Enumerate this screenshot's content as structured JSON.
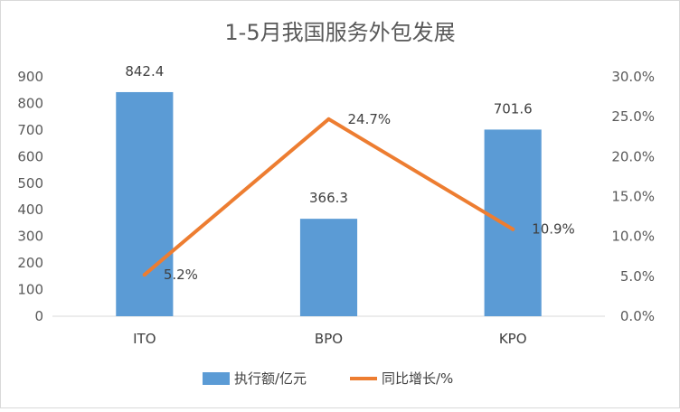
{
  "chart_data": {
    "type": "bar",
    "title": "1-5月我国服务外包发展",
    "categories": [
      "ITO",
      "BPO",
      "KPO"
    ],
    "series": [
      {
        "name": "执行额/亿元",
        "type": "bar",
        "axis": "left",
        "values": [
          842.4,
          366.3,
          701.6
        ],
        "labels": [
          "842.4",
          "366.3",
          "701.6"
        ],
        "color": "#5b9bd5"
      },
      {
        "name": "同比增长/%",
        "type": "line",
        "axis": "right",
        "values": [
          5.2,
          24.7,
          10.9
        ],
        "labels": [
          "5.2%",
          "24.7%",
          "10.9%"
        ],
        "color": "#ed7d31"
      }
    ],
    "y_left": {
      "range": [
        0,
        900
      ],
      "ticks": [
        "0",
        "100",
        "200",
        "300",
        "400",
        "500",
        "600",
        "700",
        "800",
        "900"
      ]
    },
    "y_right": {
      "range": [
        0,
        30
      ],
      "ticks": [
        "0.0%",
        "5.0%",
        "10.0%",
        "15.0%",
        "20.0%",
        "25.0%",
        "30.0%"
      ]
    },
    "grid": false,
    "legend": "bottom"
  }
}
